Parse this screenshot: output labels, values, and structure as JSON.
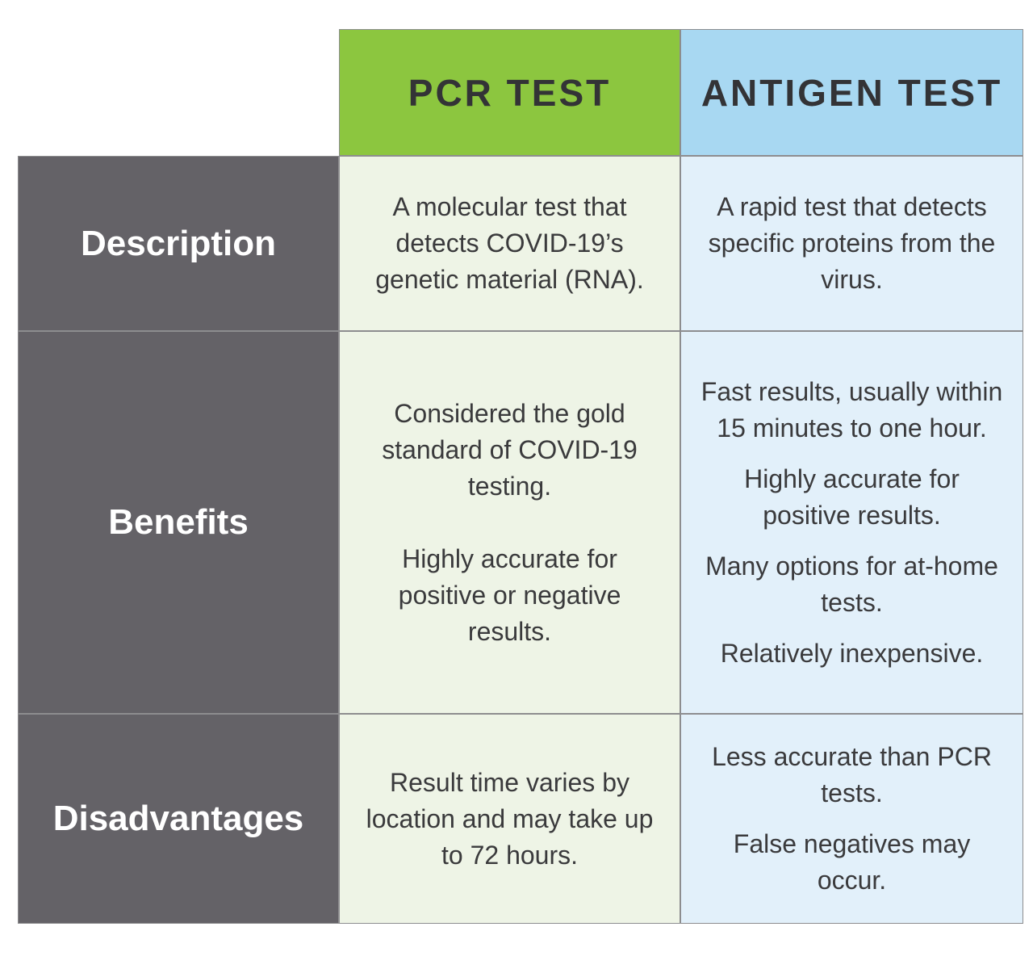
{
  "table": {
    "columns": [
      "PCR TEST",
      "ANTIGEN TEST"
    ],
    "rows": [
      {
        "label": "Description",
        "cells": [
          [
            "A molecular test that detects COVID-19’s genetic material (RNA)."
          ],
          [
            "A rapid test that detects specific proteins from the virus."
          ]
        ]
      },
      {
        "label": "Benefits",
        "cells": [
          [
            "Considered the gold standard of COVID-19 testing.",
            "Highly accurate for positive or negative results."
          ],
          [
            "Fast results, usually within 15 minutes to one hour.",
            "Highly accurate for positive results.",
            "Many options for at-home tests.",
            "Relatively inexpensive."
          ]
        ]
      },
      {
        "label": "Disadvantages",
        "cells": [
          [
            "Result time varies by location and may take up to 72 hours."
          ],
          [
            "Less accurate than PCR tests.",
            "False negatives may occur."
          ]
        ]
      }
    ]
  }
}
